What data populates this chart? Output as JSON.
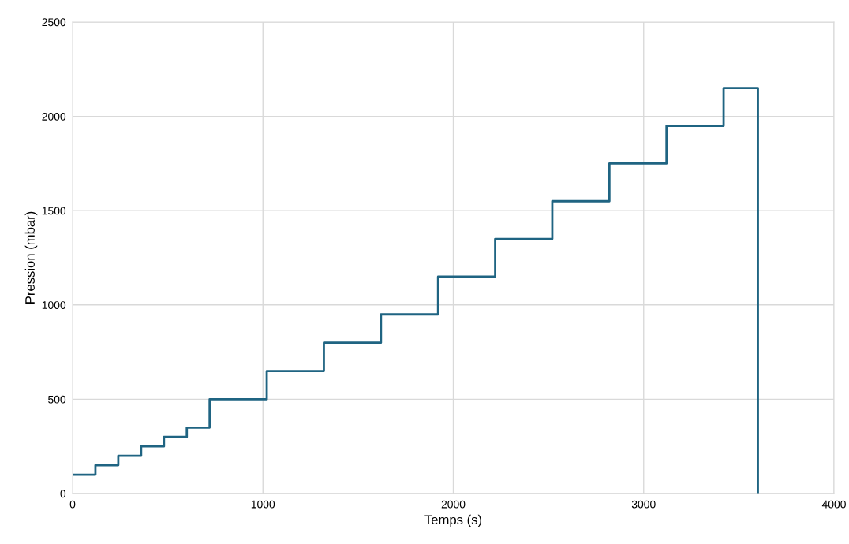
{
  "chart_data": {
    "type": "step",
    "xlabel": "Temps (s)",
    "ylabel": "Pression (mbar)",
    "x": [
      0,
      120,
      240,
      360,
      480,
      600,
      720,
      1020,
      1320,
      1620,
      1920,
      2220,
      2520,
      2820,
      3120,
      3420,
      3600
    ],
    "series": [
      {
        "color": "#1f6482",
        "values": [
          100,
          150,
          200,
          250,
          300,
          350,
          500,
          650,
          800,
          950,
          1150,
          1350,
          1550,
          1750,
          1950,
          2150,
          0
        ]
      }
    ],
    "xlim": [
      0,
      4000
    ],
    "xticks": [
      0,
      1000,
      2000,
      3000,
      4000
    ],
    "ylim": [
      0,
      2500
    ],
    "yticks": [
      0,
      500,
      1000,
      1500,
      2000,
      2500
    ],
    "grid": true,
    "line_style": "solid",
    "marker": "none"
  }
}
